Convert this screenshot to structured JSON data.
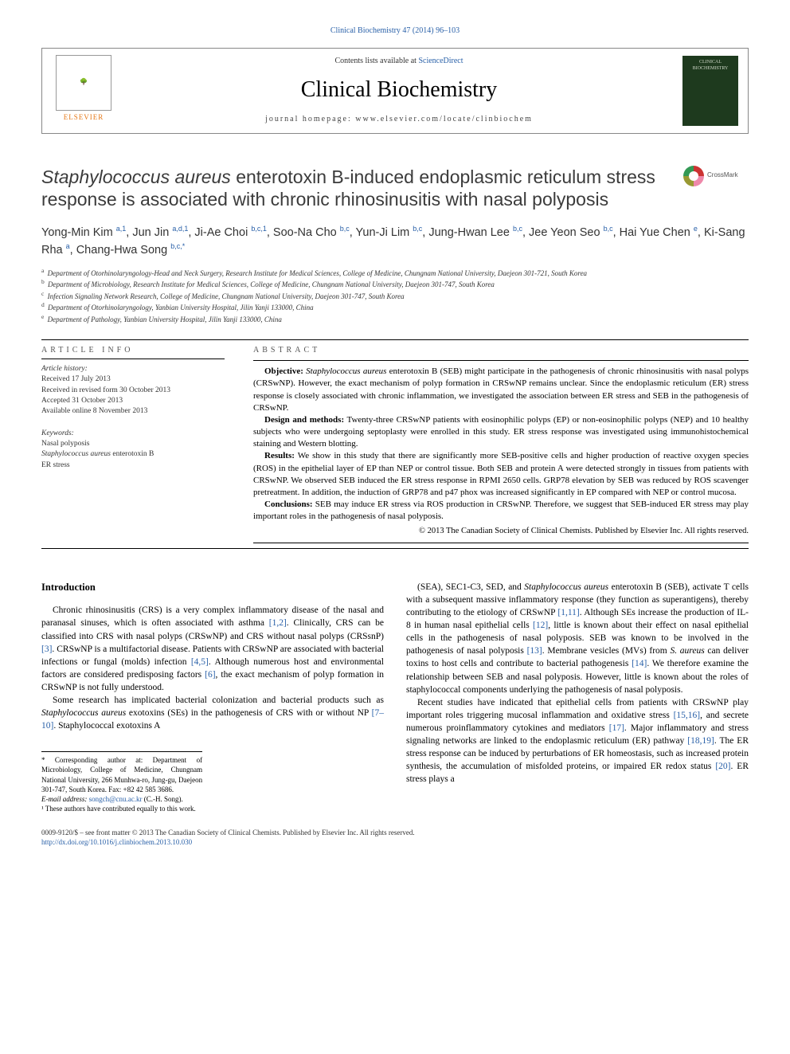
{
  "journalRef": "Clinical Biochemistry 47 (2014) 96–103",
  "header": {
    "contentsPrefix": "Contents lists available at ",
    "contentsLink": "ScienceDirect",
    "journalName": "Clinical Biochemistry",
    "homepagePrefix": "journal homepage: ",
    "homepageUrl": "www.elsevier.com/locate/clinbiochem",
    "elsevierLabel": "ELSEVIER",
    "coverLabel": "CLINICAL BIOCHEMISTRY"
  },
  "crossmark": "CrossMark",
  "title": {
    "italicLead": "Staphylococcus aureus",
    "rest": " enterotoxin B-induced endoplasmic reticulum stress response is associated with chronic rhinosinusitis with nasal polyposis"
  },
  "authorsLine": "Yong-Min Kim <sup>a,1</sup>, Jun Jin <sup>a,d,1</sup>, Ji-Ae Choi <sup>b,c,1</sup>, Soo-Na Cho <sup>b,c</sup>, Yun-Ji Lim <sup>b,c</sup>, Jung-Hwan Lee <sup>b,c</sup>, Jee Yeon Seo <sup>b,c</sup>, Hai Yue Chen <sup>e</sup>, Ki-Sang Rha <sup>a</sup>, Chang-Hwa Song <sup>b,c,*</sup>",
  "affiliations": [
    {
      "sup": "a",
      "text": "Department of Otorhinolaryngology-Head and Neck Surgery, Research Institute for Medical Sciences, College of Medicine, Chungnam National University, Daejeon 301-721, South Korea"
    },
    {
      "sup": "b",
      "text": "Department of Microbiology, Research Institute for Medical Sciences, College of Medicine, Chungnam National University, Daejeon 301-747, South Korea"
    },
    {
      "sup": "c",
      "text": "Infection Signaling Network Research, College of Medicine, Chungnam National University, Daejeon 301-747, South Korea"
    },
    {
      "sup": "d",
      "text": "Department of Otorhinolaryngology, Yanbian University Hospital, Jilin Yanji 133000, China"
    },
    {
      "sup": "e",
      "text": "Department of Pathology, Yanbian University Hospital, Jilin Yanji 133000, China"
    }
  ],
  "articleInfoLabel": "ARTICLE INFO",
  "abstractLabel": "ABSTRACT",
  "history": {
    "title": "Article history:",
    "received": "Received 17 July 2013",
    "revised": "Received in revised form 30 October 2013",
    "accepted": "Accepted 31 October 2013",
    "online": "Available online 8 November 2013"
  },
  "keywords": {
    "title": "Keywords:",
    "k1": "Nasal polyposis",
    "k2italic": "Staphylococcus aureus",
    "k2rest": " enterotoxin B",
    "k3": "ER stress"
  },
  "abstract": {
    "objLabel": "Objective:",
    "obj": " Staphylococcus aureus enterotoxin B (SEB) might participate in the pathogenesis of chronic rhinosinusitis with nasal polyps (CRSwNP). However, the exact mechanism of polyp formation in CRSwNP remains unclear. Since the endoplasmic reticulum (ER) stress response is closely associated with chronic inflammation, we investigated the association between ER stress and SEB in the pathogenesis of CRSwNP.",
    "dmLabel": "Design and methods:",
    "dm": " Twenty-three CRSwNP patients with eosinophilic polyps (EP) or non-eosinophilic polyps (NEP) and 10 healthy subjects who were undergoing septoplasty were enrolled in this study. ER stress response was investigated using immunohistochemical staining and Western blotting.",
    "resLabel": "Results:",
    "res": " We show in this study that there are significantly more SEB-positive cells and higher production of reactive oxygen species (ROS) in the epithelial layer of EP than NEP or control tissue. Both SEB and protein A were detected strongly in tissues from patients with CRSwNP. We observed SEB induced the ER stress response in RPMI 2650 cells. GRP78 elevation by SEB was reduced by ROS scavenger pretreatment. In addition, the induction of GRP78 and p47 phox was increased significantly in EP compared with NEP or control mucosa.",
    "conLabel": "Conclusions:",
    "con": " SEB may induce ER stress via ROS production in CRSwNP. Therefore, we suggest that SEB-induced ER stress may play important roles in the pathogenesis of nasal polyposis.",
    "copyright": "© 2013 The Canadian Society of Clinical Chemists. Published by Elsevier Inc. All rights reserved."
  },
  "intro": {
    "heading": "Introduction",
    "p1a": "Chronic rhinosinusitis (CRS) is a very complex inflammatory disease of the nasal and paranasal sinuses, which is often associated with asthma ",
    "r1": "[1,2]",
    "p1b": ". Clinically, CRS can be classified into CRS with nasal polyps (CRSwNP) and CRS without nasal polyps (CRSsnP) ",
    "r2": "[3]",
    "p1c": ". CRSwNP is a multifactorial disease. Patients with CRSwNP are associated with bacterial infections or fungal (molds) infection ",
    "r3": "[4,5]",
    "p1d": ". Although numerous host and environmental factors are considered predisposing factors ",
    "r4": "[6]",
    "p1e": ", the exact mechanism of polyp formation in CRSwNP is not fully understood.",
    "p2a": "Some research has implicated bacterial colonization and bacterial products such as ",
    "p2italic": "Staphylococcus aureus",
    "p2b": " exotoxins (SEs) in the pathogenesis of CRS with or without NP ",
    "r5": "[7–10]",
    "p2c": ". Staphylococcal exotoxins A",
    "p3a": "(SEA), SEC1-C3, SED, and ",
    "p3italic": "Staphylococcus aureus",
    "p3b": " enterotoxin B (SEB), activate T cells with a subsequent massive inflammatory response (they function as superantigens), thereby contributing to the etiology of CRSwNP ",
    "r6": "[1,11]",
    "p3c": ". Although SEs increase the production of IL-8 in human nasal epithelial cells ",
    "r7": "[12]",
    "p3d": ", little is known about their effect on nasal epithelial cells in the pathogenesis of nasal polyposis. SEB was known to be involved in the pathogenesis of nasal polyposis ",
    "r8": "[13]",
    "p3e": ". Membrane vesicles (MVs) from ",
    "p3italic2": "S. aureus",
    "p3f": " can deliver toxins to host cells and contribute to bacterial pathogenesis ",
    "r9": "[14]",
    "p3g": ". We therefore examine the relationship between SEB and nasal polyposis. However, little is known about the roles of staphylococcal components underlying the pathogenesis of nasal polyposis.",
    "p4a": "Recent studies have indicated that epithelial cells from patients with CRSwNP play important roles triggering mucosal inflammation and oxidative stress ",
    "r10": "[15,16]",
    "p4b": ", and secrete numerous proinflammatory cytokines and mediators ",
    "r11": "[17]",
    "p4c": ". Major inflammatory and stress signaling networks are linked to the endoplasmic reticulum (ER) pathway ",
    "r12": "[18,19]",
    "p4d": ". The ER stress response can be induced by perturbations of ER homeostasis, such as increased protein synthesis, the accumulation of misfolded proteins, or impaired ER redox status ",
    "r13": "[20]",
    "p4e": ". ER stress plays a"
  },
  "footnotes": {
    "corr": "* Corresponding author at: Department of Microbiology, College of Medicine, Chungnam National University, 266 Munhwa-ro, Jung-gu, Daejeon 301-747, South Korea. Fax: +82 42 585 3686.",
    "emailLabel": "E-mail address: ",
    "email": "songch@cnu.ac.kr",
    "emailSuffix": " (C.-H. Song).",
    "equal": "¹ These authors have contributed equally to this work."
  },
  "footer": {
    "issn": "0009-9120/$ – see front matter © 2013 The Canadian Society of Clinical Chemists. Published by Elsevier Inc. All rights reserved.",
    "doi": "http://dx.doi.org/10.1016/j.clinbiochem.2013.10.030"
  },
  "colors": {
    "link": "#2960a8",
    "elsevierOrange": "#e67817",
    "coverGreen": "#1e3a1e"
  }
}
